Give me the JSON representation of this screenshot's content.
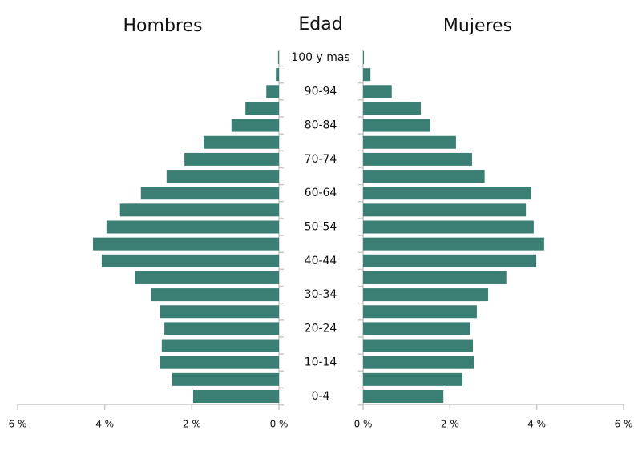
{
  "chart_data": {
    "type": "pyramid",
    "y_label": "Edad",
    "categories": [
      "0-4",
      null,
      "10-14",
      null,
      "20-24",
      null,
      "30-34",
      null,
      "40-44",
      null,
      "50-54",
      null,
      "60-64",
      null,
      "70-74",
      null,
      "80-84",
      null,
      "90-94",
      null,
      "100 y mas"
    ],
    "series": [
      {
        "name": "Hombres",
        "color": "#3b7f74",
        "values": [
          1.97,
          2.45,
          2.74,
          2.69,
          2.63,
          2.73,
          2.93,
          3.31,
          4.07,
          4.27,
          3.96,
          3.65,
          3.17,
          2.58,
          2.17,
          1.73,
          1.09,
          0.77,
          0.29,
          0.07,
          0.02
        ]
      },
      {
        "name": "Mujeres",
        "color": "#3b7f74",
        "values": [
          1.85,
          2.29,
          2.56,
          2.53,
          2.47,
          2.62,
          2.88,
          3.3,
          3.99,
          4.17,
          3.93,
          3.75,
          3.87,
          2.8,
          2.51,
          2.14,
          1.55,
          1.33,
          0.66,
          0.17,
          0.02
        ]
      }
    ],
    "xlim": [
      0,
      6
    ],
    "xticks": [
      {
        "value": 0,
        "label": "0 %"
      },
      {
        "value": 2,
        "label": "2 %"
      },
      {
        "value": 4,
        "label": "4 %"
      },
      {
        "value": 6,
        "label": "6 %"
      }
    ]
  }
}
